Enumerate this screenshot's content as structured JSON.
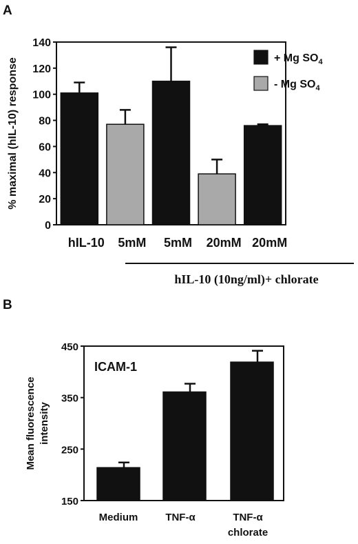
{
  "panels": {
    "a_label": "A",
    "b_label": "B"
  },
  "colors": {
    "dark_bar": "#111111",
    "gray_bar": "#a9a9a9"
  },
  "chart_data": [
    {
      "panel": "A",
      "type": "bar",
      "ylabel": "% maximal (hIL-10) response",
      "ylim": [
        0,
        140
      ],
      "yticks": [
        0,
        20,
        40,
        60,
        80,
        100,
        120,
        140
      ],
      "categories": [
        "hIL-10",
        "5mM",
        "5mM",
        "20mM",
        "20mM"
      ],
      "values": [
        101,
        77,
        110,
        39,
        76
      ],
      "errors": [
        8,
        11,
        26,
        11,
        1
      ],
      "bar_colors": [
        "dark",
        "gray",
        "dark",
        "gray",
        "dark"
      ],
      "legend": [
        {
          "label": "+ Mg SO",
          "sub": "4",
          "color": "dark"
        },
        {
          "label": "- Mg SO",
          "sub": "4",
          "color": "gray"
        }
      ],
      "legend_position": "top-right",
      "group_label": "hIL-10 (10ng/ml)+ chlorate"
    },
    {
      "panel": "B",
      "type": "bar",
      "title": "ICAM-1",
      "ylabel": "Mean fluorescence intensity",
      "ylabel_lines": [
        "Mean fluorescence",
        "intensity"
      ],
      "ylim": [
        150,
        450
      ],
      "yticks": [
        150,
        250,
        350,
        450
      ],
      "categories": [
        "Medium",
        "TNF-α",
        "TNF-α chlorate"
      ],
      "category_lines": [
        [
          "Medium"
        ],
        [
          "TNF-α"
        ],
        [
          "TNF-α",
          "chlorate"
        ]
      ],
      "values": [
        214,
        361,
        419
      ],
      "errors": [
        10,
        16,
        22
      ],
      "bar_colors": [
        "dark",
        "dark",
        "dark"
      ]
    }
  ]
}
